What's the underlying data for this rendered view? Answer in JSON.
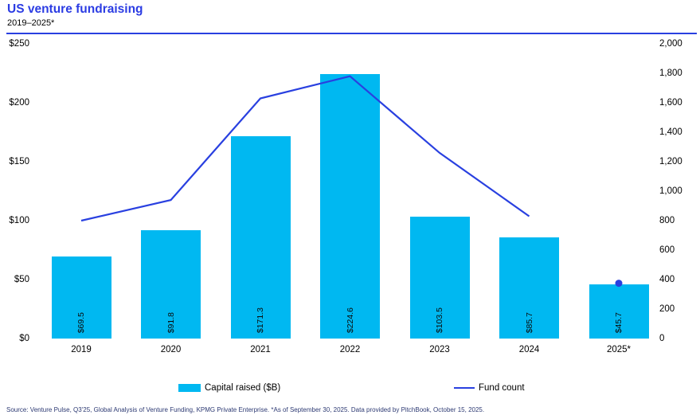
{
  "header": {
    "title": "US venture fundraising",
    "subtitle": "2019–2025*"
  },
  "colors": {
    "bar_cyan": "#00B8F1",
    "line_blue": "#2940E0",
    "title_blue": "#2B3CE3",
    "source_navy": "#2D3A73",
    "text_black": "#000000"
  },
  "chart_data": {
    "type": "bar",
    "subtype": "combo bar + line, dual axis",
    "categories": [
      "2019",
      "2020",
      "2021",
      "2022",
      "2023",
      "2024",
      "2025*"
    ],
    "series": [
      {
        "name": "Capital raised ($B)",
        "type": "bar",
        "axis": "left",
        "values": [
          69.5,
          91.8,
          171.3,
          224.6,
          103.5,
          85.7,
          45.7
        ],
        "labels": [
          "$69.5",
          "$91.8",
          "$171.3",
          "$224.6",
          "$103.5",
          "$85.7",
          "$45.7"
        ]
      },
      {
        "name": "Fund count",
        "type": "line",
        "axis": "right",
        "values": [
          800,
          940,
          1630,
          1780,
          1260,
          830,
          375
        ],
        "marker_only_last": true,
        "note": "2025* value shown as a single point marker above the bar; line drawn 2019–2024"
      }
    ],
    "left_axis": {
      "min": 0,
      "max": 250,
      "ticks": [
        {
          "value": 250,
          "label": "$250"
        },
        {
          "value": 200,
          "label": "$200"
        },
        {
          "value": 150,
          "label": "$150"
        },
        {
          "value": 100,
          "label": "$100"
        },
        {
          "value": 50,
          "label": "$50"
        },
        {
          "value": 0,
          "label": "$0"
        }
      ]
    },
    "right_axis": {
      "min": 0,
      "max": 2000,
      "ticks": [
        {
          "value": 2000,
          "label": "2,000"
        },
        {
          "value": 1800,
          "label": "1,800"
        },
        {
          "value": 1600,
          "label": "1,600"
        },
        {
          "value": 1400,
          "label": "1,400"
        },
        {
          "value": 1200,
          "label": "1,200"
        },
        {
          "value": 1000,
          "label": "1,000"
        },
        {
          "value": 800,
          "label": "800"
        },
        {
          "value": 600,
          "label": "600"
        },
        {
          "value": 400,
          "label": "400"
        },
        {
          "value": 200,
          "label": "200"
        },
        {
          "value": 0,
          "label": "0"
        }
      ]
    },
    "legend": [
      {
        "label": "Capital raised ($B)",
        "swatch": "bar"
      },
      {
        "label": "Fund count",
        "swatch": "line"
      }
    ],
    "grid": false,
    "legend_position": "bottom"
  },
  "source": "Source: Venture Pulse, Q3'25, Global Analysis of Venture Funding, KPMG Private Enterprise. *As of September 30, 2025. Data provided by PitchBook, October 15, 2025."
}
